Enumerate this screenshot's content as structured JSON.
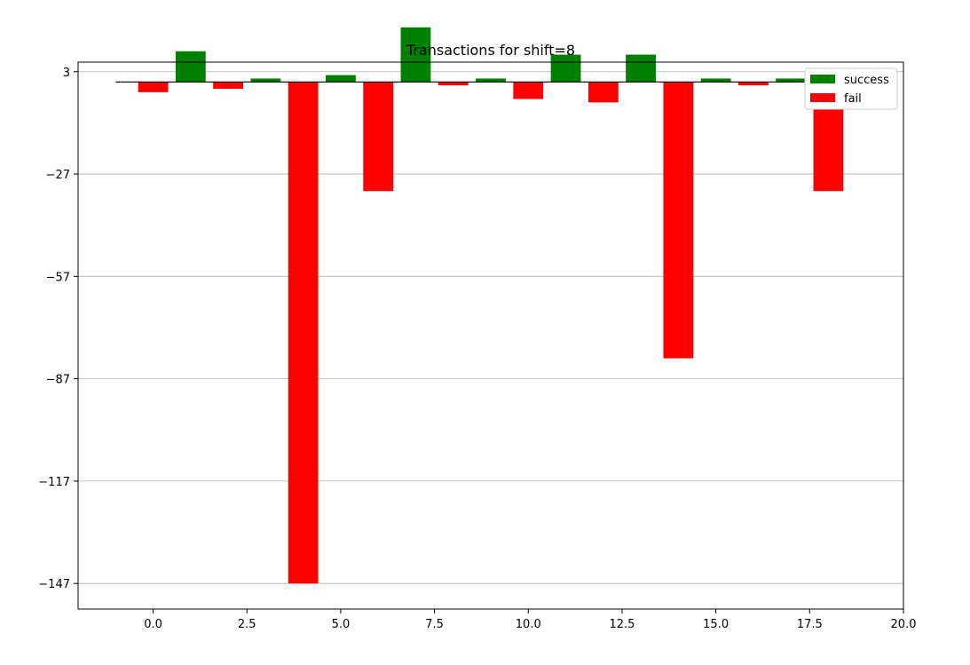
{
  "chart_data": {
    "type": "bar",
    "title": "Transactions for shift=8",
    "xlabel": "",
    "ylabel": "",
    "xlim": [
      -2,
      20
    ],
    "ylim": [
      -154.5,
      5.8
    ],
    "x_ticks": [
      0,
      2.5,
      5,
      7.5,
      10,
      12.5,
      15,
      17.5,
      20
    ],
    "x_tick_labels": [
      "0.0",
      "2.5",
      "5.0",
      "7.5",
      "10.0",
      "12.5",
      "15.0",
      "17.5",
      "20.0"
    ],
    "y_ticks": [
      3,
      -27,
      -57,
      -87,
      -117,
      -147
    ],
    "y_tick_labels": [
      "3",
      "−27",
      "−57",
      "−87",
      "−117",
      "−147"
    ],
    "grid": "y",
    "legend_position": "top-right",
    "bar_width": 0.8,
    "baseline": {
      "y": 0,
      "x_start": -1,
      "x_end": 19,
      "color": "#000000"
    },
    "series": [
      {
        "name": "success",
        "color": "#008000",
        "x": [
          1,
          3,
          5,
          7,
          9,
          11,
          13,
          15,
          17
        ],
        "values": [
          9,
          1,
          2,
          16,
          1,
          8,
          8,
          1,
          1
        ]
      },
      {
        "name": "fail",
        "color": "#ff0000",
        "x": [
          0,
          2,
          4,
          6,
          8,
          10,
          12,
          14,
          16,
          18
        ],
        "values": [
          -3,
          -2,
          -147,
          -32,
          -1,
          -5,
          -6,
          -81,
          -1,
          -32
        ]
      }
    ]
  }
}
